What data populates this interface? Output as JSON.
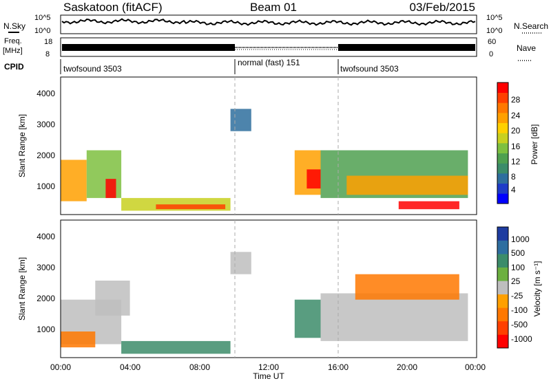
{
  "header": {
    "station": "Saskatoon (fitACF)",
    "beam": "Beam 01",
    "date": "03/Feb/2015"
  },
  "top_panels": {
    "nsky_label": "N.Sky",
    "nsky_ticks": [
      "10^5",
      "10^0"
    ],
    "nsearch_label": "N.Search",
    "nsearch_ticks": [
      "10^5",
      "10^0"
    ],
    "freq_label": "Freq.",
    "freq_unit": "[MHz]",
    "freq_ticks": [
      "18",
      "8"
    ],
    "nave_label": "Nave",
    "nave_ticks": [
      "60",
      "0"
    ],
    "cpid_label": "CPID",
    "cpid_segments": [
      {
        "label": "twofsound 3503",
        "start_hour": 0,
        "end_hour": 10
      },
      {
        "label": "normal (fast) 151",
        "start_hour": 10,
        "end_hour": 16
      },
      {
        "label": "twofsound 3503",
        "start_hour": 16,
        "end_hour": 24
      }
    ]
  },
  "power_colorbar": {
    "title": "Power [dB]",
    "ticks": [
      "28",
      "24",
      "20",
      "16",
      "12",
      "8",
      "4"
    ],
    "colors": [
      "#0000ff",
      "#1e3cc8",
      "#2e6e9e",
      "#3c8c6a",
      "#4fa050",
      "#7ec040",
      "#c8d020",
      "#ffd000",
      "#ffa000",
      "#ff7800",
      "#ff4000",
      "#ff0000"
    ]
  },
  "velocity_colorbar": {
    "title": "Velocity [m s⁻¹]",
    "ticks": [
      "1000",
      "500",
      "100",
      "25",
      "-25",
      "-100",
      "-500",
      "-1000"
    ],
    "colors": [
      "#1e3ca0",
      "#2e6ea0",
      "#3c8c6a",
      "#6cb040",
      "#bebebe",
      "#ffa000",
      "#ff7800",
      "#ff4000",
      "#ff0000"
    ]
  },
  "axes": {
    "ylabel": "Slant Range [km]",
    "xlabel": "Time UT",
    "yticks": [
      "4000",
      "3000",
      "2000",
      "1000"
    ],
    "xticks": [
      "00:00",
      "04:00",
      "08:00",
      "12:00",
      "16:00",
      "20:00",
      "00:00"
    ]
  },
  "chart_data": [
    {
      "type": "heatmap",
      "title": "Power",
      "xlabel": "Time UT",
      "ylabel": "Slant Range [km]",
      "xlim_hours": [
        0,
        24
      ],
      "ylim_km": [
        180,
        4500
      ],
      "colorbar": "Power [dB]",
      "colorbar_range_db": [
        0,
        30
      ],
      "regions": [
        {
          "t0": 0.0,
          "t1": 1.5,
          "r0": 600,
          "r1": 1900,
          "value": 20
        },
        {
          "t0": 1.5,
          "t1": 3.5,
          "r0": 700,
          "r1": 2200,
          "value": 14
        },
        {
          "t0": 2.6,
          "t1": 3.2,
          "r0": 700,
          "r1": 1300,
          "value": 28
        },
        {
          "t0": 3.5,
          "t1": 9.8,
          "r0": 300,
          "r1": 700,
          "value": 16
        },
        {
          "t0": 5.5,
          "t1": 9.5,
          "r0": 350,
          "r1": 500,
          "value": 26
        },
        {
          "t0": 9.8,
          "t1": 11.0,
          "r0": 2800,
          "r1": 3500,
          "value": 6
        },
        {
          "t0": 13.5,
          "t1": 15.0,
          "r0": 800,
          "r1": 2200,
          "value": 20
        },
        {
          "t0": 14.2,
          "t1": 15.0,
          "r0": 1000,
          "r1": 1600,
          "value": 29
        },
        {
          "t0": 15.0,
          "t1": 23.5,
          "r0": 700,
          "r1": 2200,
          "value": 12
        },
        {
          "t0": 16.5,
          "t1": 23.5,
          "r0": 800,
          "r1": 1400,
          "value": 22
        },
        {
          "t0": 19.5,
          "t1": 23.0,
          "r0": 350,
          "r1": 600,
          "value": 28
        }
      ]
    },
    {
      "type": "heatmap",
      "title": "Velocity",
      "xlabel": "Time UT",
      "ylabel": "Slant Range [km]",
      "xlim_hours": [
        0,
        24
      ],
      "ylim_km": [
        180,
        4500
      ],
      "colorbar": "Velocity [m s⁻¹]",
      "colorbar_range_ms": [
        -1000,
        1000
      ],
      "regions": [
        {
          "t0": 0.0,
          "t1": 3.5,
          "r0": 600,
          "r1": 2000,
          "value": 0
        },
        {
          "t0": 0.0,
          "t1": 2.0,
          "r0": 500,
          "r1": 1000,
          "value": -150
        },
        {
          "t0": 2.0,
          "t1": 4.0,
          "r0": 1500,
          "r1": 2600,
          "value": 0
        },
        {
          "t0": 3.5,
          "t1": 9.8,
          "r0": 300,
          "r1": 700,
          "value": 80
        },
        {
          "t0": 9.8,
          "t1": 11.0,
          "r0": 2800,
          "r1": 3500,
          "value": 0
        },
        {
          "t0": 13.5,
          "t1": 15.0,
          "r0": 800,
          "r1": 2000,
          "value": 60
        },
        {
          "t0": 15.0,
          "t1": 23.5,
          "r0": 700,
          "r1": 2200,
          "value": 0
        },
        {
          "t0": 17.0,
          "t1": 23.0,
          "r0": 2000,
          "r1": 2800,
          "value": -200
        }
      ]
    }
  ]
}
